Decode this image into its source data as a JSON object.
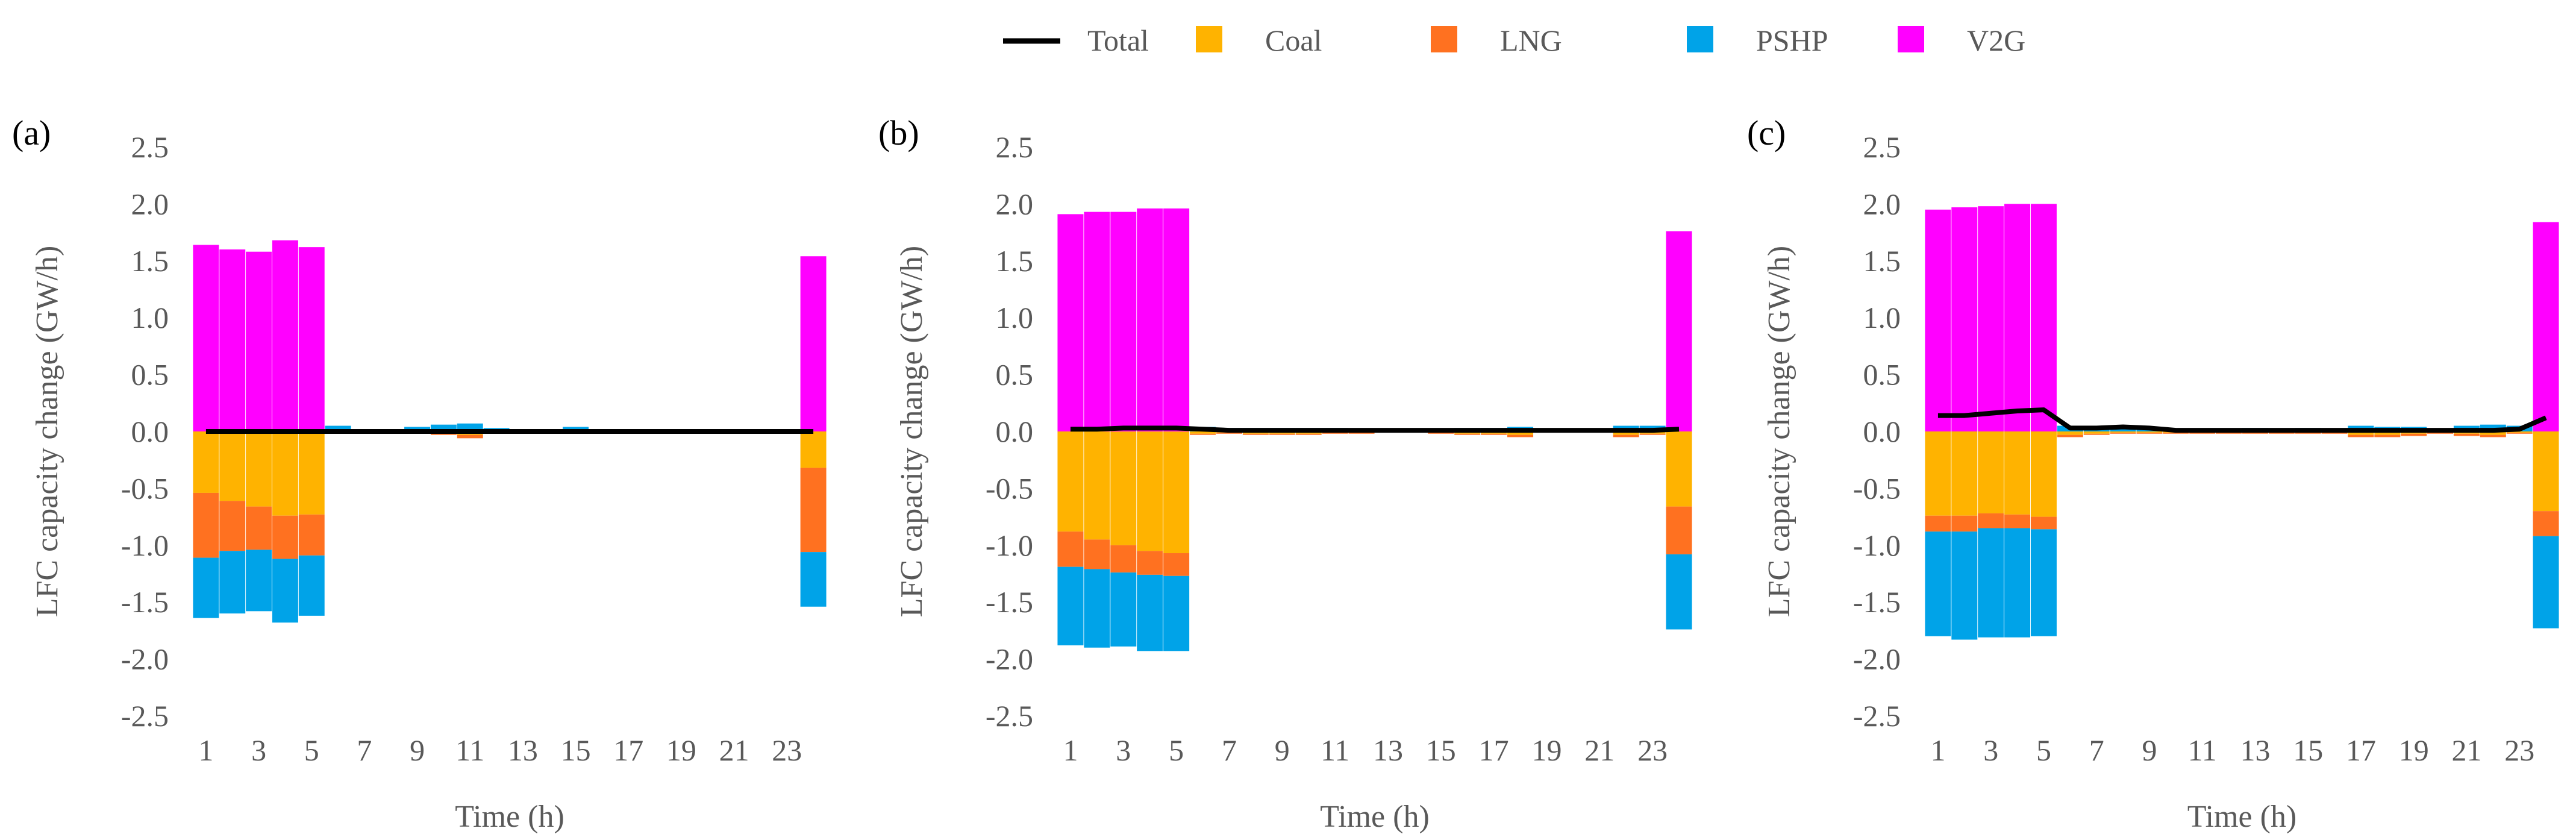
{
  "legend": {
    "placement": "top-center",
    "items": [
      {
        "label": "Total",
        "kind": "line",
        "color": "#000000"
      },
      {
        "label": "Coal",
        "kind": "box",
        "color": "#FFB300"
      },
      {
        "label": "LNG",
        "kind": "box",
        "color": "#FF7120"
      },
      {
        "label": "PSHP",
        "kind": "box",
        "color": "#00A3E8"
      },
      {
        "label": "V2G",
        "kind": "box",
        "color": "#FF00FF"
      }
    ]
  },
  "colors": {
    "Coal": "#FFB300",
    "LNG": "#FF7120",
    "PSHP": "#00A3E8",
    "V2G": "#FF00FF",
    "Total": "#000000",
    "axis_text": "#595959"
  },
  "chart_data": [
    {
      "panel_label": "(a)",
      "type": "bar",
      "stacked": true,
      "title": "",
      "xlabel": "Time (h)",
      "ylabel": "LFC capacity change (GW/h)",
      "ylim": [
        -2.5,
        2.5
      ],
      "yticks": [
        "2.5",
        "2.0",
        "1.5",
        "1.0",
        "0.5",
        "0.0",
        "-0.5",
        "-1.0",
        "-1.5",
        "-2.0",
        "-2.5"
      ],
      "xticks": [
        "1",
        "3",
        "5",
        "7",
        "9",
        "11",
        "13",
        "15",
        "17",
        "19",
        "21",
        "23"
      ],
      "grid": false,
      "categories": [
        1,
        2,
        3,
        4,
        5,
        6,
        7,
        8,
        9,
        10,
        11,
        12,
        13,
        14,
        15,
        16,
        17,
        18,
        19,
        20,
        21,
        22,
        23,
        24
      ],
      "series": [
        {
          "name": "Coal",
          "values": [
            -0.54,
            -0.61,
            -0.66,
            -0.74,
            -0.73,
            -0.01,
            0,
            0,
            -0.01,
            -0.01,
            -0.03,
            -0.01,
            0,
            0,
            -0.01,
            0,
            0,
            0,
            0,
            0,
            0,
            0,
            0,
            -0.32
          ]
        },
        {
          "name": "LNG",
          "values": [
            -0.57,
            -0.44,
            -0.38,
            -0.38,
            -0.36,
            -0.01,
            0,
            0,
            -0.01,
            -0.02,
            -0.03,
            -0.01,
            0,
            0,
            -0.01,
            0,
            0,
            0,
            0,
            0,
            0,
            0,
            0,
            -0.74
          ]
        },
        {
          "name": "PSHP",
          "values": [
            -0.53,
            -0.55,
            -0.54,
            -0.56,
            -0.53,
            0.05,
            0.02,
            0.02,
            0.04,
            0.06,
            0.07,
            0.03,
            0,
            0.02,
            0.04,
            0.02,
            0,
            0,
            0,
            0,
            0,
            0,
            0,
            -0.48
          ]
        },
        {
          "name": "V2G",
          "values": [
            1.64,
            1.6,
            1.58,
            1.68,
            1.62,
            0,
            0,
            0,
            0,
            0,
            0,
            0,
            0,
            0,
            0,
            0,
            0,
            0,
            0,
            0,
            0,
            0,
            0,
            1.54
          ]
        },
        {
          "name": "Total",
          "type": "line",
          "values": [
            0,
            0,
            0,
            0,
            0,
            0,
            0,
            0,
            0,
            0,
            0,
            0,
            0,
            0,
            0,
            0,
            0,
            0,
            0,
            0,
            0,
            0,
            0,
            0
          ]
        }
      ]
    },
    {
      "panel_label": "(b)",
      "type": "bar",
      "stacked": true,
      "title": "",
      "xlabel": "Time (h)",
      "ylabel": "LFC capacity change (GW/h)",
      "ylim": [
        -2.5,
        2.5
      ],
      "yticks": [
        "2.5",
        "2.0",
        "1.5",
        "1.0",
        "0.5",
        "0.0",
        "-0.5",
        "-1.0",
        "-1.5",
        "-2.0",
        "-2.5"
      ],
      "xticks": [
        "1",
        "3",
        "5",
        "7",
        "9",
        "11",
        "13",
        "15",
        "17",
        "19",
        "21",
        "23"
      ],
      "grid": false,
      "categories": [
        1,
        2,
        3,
        4,
        5,
        6,
        7,
        8,
        9,
        10,
        11,
        12,
        13,
        14,
        15,
        16,
        17,
        18,
        19,
        20,
        21,
        22,
        23,
        24
      ],
      "series": [
        {
          "name": "Coal",
          "values": [
            -0.88,
            -0.95,
            -1.0,
            -1.05,
            -1.07,
            -0.02,
            -0.01,
            -0.02,
            -0.02,
            -0.02,
            -0.01,
            -0.01,
            0,
            0,
            -0.01,
            -0.02,
            -0.02,
            -0.03,
            0,
            0,
            0,
            -0.03,
            -0.02,
            -0.66
          ]
        },
        {
          "name": "LNG",
          "values": [
            -0.31,
            -0.26,
            -0.24,
            -0.21,
            -0.2,
            -0.01,
            -0.01,
            -0.01,
            -0.01,
            -0.01,
            -0.01,
            -0.01,
            0,
            0,
            -0.01,
            -0.01,
            -0.01,
            -0.02,
            0,
            0,
            0,
            -0.02,
            -0.01,
            -0.42
          ]
        },
        {
          "name": "PSHP",
          "values": [
            -0.69,
            -0.69,
            -0.65,
            -0.67,
            -0.66,
            0.04,
            0.03,
            0.03,
            0.03,
            0.03,
            0.03,
            0.02,
            0.02,
            0.01,
            0.02,
            0.03,
            0.03,
            0.04,
            0.02,
            0.01,
            0.02,
            0.05,
            0.05,
            -0.66
          ]
        },
        {
          "name": "V2G",
          "values": [
            1.91,
            1.93,
            1.93,
            1.96,
            1.96,
            0,
            0,
            0,
            0,
            0,
            0,
            0,
            0,
            0,
            0,
            0,
            0,
            0,
            0,
            0,
            0,
            0,
            0,
            1.76
          ]
        },
        {
          "name": "Total",
          "type": "line",
          "values": [
            0.02,
            0.02,
            0.03,
            0.03,
            0.03,
            0.02,
            0.01,
            0.01,
            0.01,
            0.01,
            0.01,
            0.01,
            0.01,
            0.01,
            0.01,
            0.01,
            0.01,
            0.01,
            0.01,
            0.01,
            0.01,
            0.01,
            0.01,
            0.02
          ]
        }
      ]
    },
    {
      "panel_label": "(c)",
      "type": "bar",
      "stacked": true,
      "title": "",
      "xlabel": "Time (h)",
      "ylabel": "LFC capacity change (GW/h)",
      "ylim": [
        -2.5,
        2.5
      ],
      "yticks": [
        "2.5",
        "2.0",
        "1.5",
        "1.0",
        "0.5",
        "0.0",
        "-0.5",
        "-1.0",
        "-1.5",
        "-2.0",
        "-2.5"
      ],
      "xticks": [
        "1",
        "3",
        "5",
        "7",
        "9",
        "11",
        "13",
        "15",
        "17",
        "19",
        "21",
        "23"
      ],
      "grid": false,
      "categories": [
        1,
        2,
        3,
        4,
        5,
        6,
        7,
        8,
        9,
        10,
        11,
        12,
        13,
        14,
        15,
        16,
        17,
        18,
        19,
        20,
        21,
        22,
        23,
        24
      ],
      "series": [
        {
          "name": "Coal",
          "values": [
            -0.74,
            -0.74,
            -0.72,
            -0.73,
            -0.75,
            -0.03,
            -0.02,
            -0.01,
            -0.01,
            -0.01,
            -0.01,
            -0.01,
            -0.01,
            -0.01,
            -0.01,
            -0.01,
            -0.03,
            -0.03,
            -0.02,
            -0.01,
            -0.02,
            -0.03,
            -0.01,
            -0.7
          ]
        },
        {
          "name": "LNG",
          "values": [
            -0.14,
            -0.14,
            -0.13,
            -0.12,
            -0.11,
            -0.02,
            -0.01,
            -0.01,
            -0.01,
            -0.01,
            -0.01,
            -0.01,
            -0.01,
            -0.01,
            -0.01,
            -0.01,
            -0.02,
            -0.02,
            -0.02,
            -0.01,
            -0.02,
            -0.02,
            -0.01,
            -0.22
          ]
        },
        {
          "name": "PSHP",
          "values": [
            -0.92,
            -0.95,
            -0.96,
            -0.96,
            -0.94,
            0.05,
            0.04,
            0.05,
            0.04,
            0.02,
            0.02,
            0.02,
            0.03,
            0.02,
            0.03,
            0.02,
            0.05,
            0.04,
            0.04,
            0.02,
            0.05,
            0.06,
            0.05,
            -0.81
          ]
        },
        {
          "name": "V2G",
          "values": [
            1.95,
            1.97,
            1.98,
            2.0,
            2.0,
            0,
            0,
            0,
            0,
            0,
            0,
            0,
            0,
            0,
            0,
            0,
            0,
            0,
            0,
            0,
            0,
            0,
            0,
            1.84
          ]
        },
        {
          "name": "Total",
          "type": "line",
          "values": [
            0.14,
            0.14,
            0.16,
            0.18,
            0.19,
            0.03,
            0.03,
            0.04,
            0.03,
            0.01,
            0.01,
            0.01,
            0.01,
            0.01,
            0.01,
            0.01,
            0.01,
            0.01,
            0.01,
            0.01,
            0.01,
            0.01,
            0.02,
            0.12
          ]
        }
      ]
    }
  ]
}
